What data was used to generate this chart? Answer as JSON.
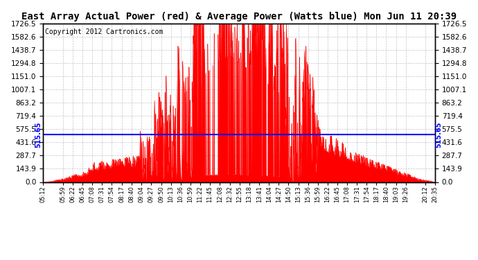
{
  "title": "East Array Actual Power (red) & Average Power (Watts blue) Mon Jun 11 20:39",
  "copyright": "Copyright 2012 Cartronics.com",
  "average_power": 515.65,
  "y_max": 1726.5,
  "y_min": 0.0,
  "y_ticks": [
    0.0,
    143.9,
    287.7,
    431.6,
    575.5,
    719.4,
    863.2,
    1007.1,
    1151.0,
    1294.8,
    1438.7,
    1582.6,
    1726.5
  ],
  "fill_color": "#FF0000",
  "line_color": "#FF0000",
  "avg_line_color": "#0000FF",
  "background_color": "#FFFFFF",
  "grid_color": "#AAAAAA",
  "title_fontsize": 10,
  "x_labels": [
    "05:12",
    "05:59",
    "06:22",
    "06:45",
    "07:08",
    "07:31",
    "07:54",
    "08:17",
    "08:40",
    "09:04",
    "09:27",
    "09:50",
    "10:13",
    "10:36",
    "10:59",
    "11:22",
    "11:45",
    "12:08",
    "12:32",
    "12:55",
    "13:18",
    "13:41",
    "14:04",
    "14:27",
    "14:50",
    "15:13",
    "15:36",
    "15:59",
    "16:22",
    "16:45",
    "17:08",
    "17:31",
    "17:54",
    "18:17",
    "18:40",
    "19:03",
    "19:26",
    "20:12",
    "20:35"
  ],
  "avg_label_fontsize": 7,
  "copyright_fontsize": 7,
  "tick_fontsize": 7.5
}
